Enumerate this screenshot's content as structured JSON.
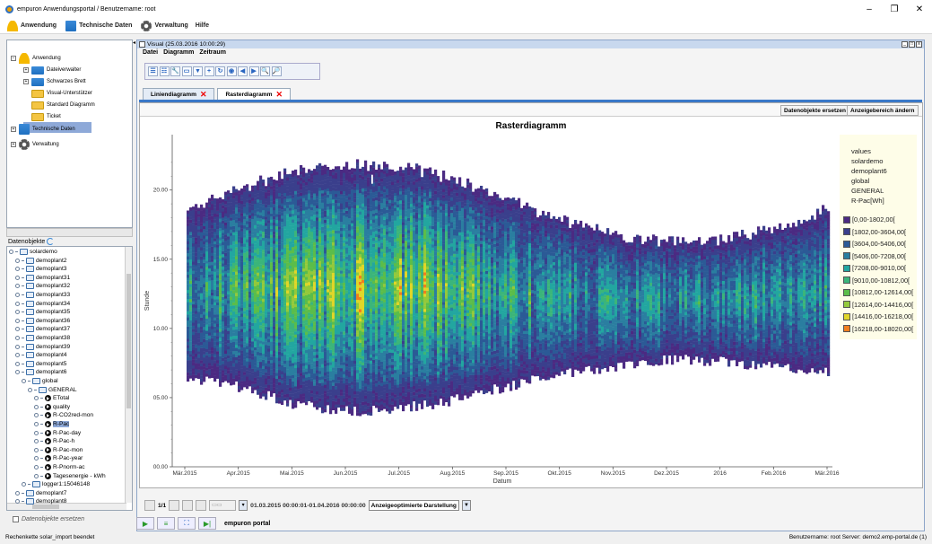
{
  "window": {
    "title": "empuron Anwendungsportal / Benutzername: root",
    "controls": [
      "–",
      "❐",
      "✕"
    ]
  },
  "menubar": {
    "items": [
      {
        "label": "Anwendung",
        "icon": "user-icon"
      },
      {
        "label": "Technische Daten",
        "icon": "folder-icon"
      },
      {
        "label": "Verwaltung",
        "icon": "gear-icon"
      },
      {
        "label": "Hilfe",
        "icon": ""
      }
    ]
  },
  "nav_tree": {
    "items": [
      {
        "label": "Anwendung",
        "level": 0,
        "expander": "−"
      },
      {
        "label": "Dateiverwalter",
        "level": 1,
        "expander": "+"
      },
      {
        "label": "Schwarzes Brett",
        "level": 1,
        "expander": "+"
      },
      {
        "label": "Visual-Unterstützer",
        "level": 1,
        "expander": ""
      },
      {
        "label": "Standard Diagramm",
        "level": 1,
        "expander": "",
        "selected": true
      },
      {
        "label": "Ticket",
        "level": 1,
        "expander": ""
      },
      {
        "label": "Technische Daten",
        "level": 0,
        "expander": "+"
      },
      {
        "label": "Verwaltung",
        "level": 0,
        "expander": "+"
      }
    ]
  },
  "datenobjekte": {
    "title": "Datenobjekte",
    "tree": [
      {
        "label": "solardemo",
        "level": 0,
        "type": "folder"
      },
      {
        "label": "demoplant2",
        "level": 1,
        "type": "folder"
      },
      {
        "label": "demoplant3",
        "level": 1,
        "type": "folder"
      },
      {
        "label": "demoplant31",
        "level": 1,
        "type": "folder"
      },
      {
        "label": "demoplant32",
        "level": 1,
        "type": "folder"
      },
      {
        "label": "demoplant33",
        "level": 1,
        "type": "folder"
      },
      {
        "label": "demoplant34",
        "level": 1,
        "type": "folder"
      },
      {
        "label": "demoplant35",
        "level": 1,
        "type": "folder"
      },
      {
        "label": "demoplant36",
        "level": 1,
        "type": "folder"
      },
      {
        "label": "demoplant37",
        "level": 1,
        "type": "folder"
      },
      {
        "label": "demoplant38",
        "level": 1,
        "type": "folder"
      },
      {
        "label": "demoplant39",
        "level": 1,
        "type": "folder"
      },
      {
        "label": "demoplant4",
        "level": 1,
        "type": "folder"
      },
      {
        "label": "demoplant5",
        "level": 1,
        "type": "folder"
      },
      {
        "label": "demoplant6",
        "level": 1,
        "type": "folder"
      },
      {
        "label": "global",
        "level": 2,
        "type": "folder"
      },
      {
        "label": "GENERAL",
        "level": 3,
        "type": "folder"
      },
      {
        "label": "ETotal",
        "level": 4,
        "type": "value"
      },
      {
        "label": "quality",
        "level": 4,
        "type": "value"
      },
      {
        "label": "R-CO2red-mon",
        "level": 4,
        "type": "value"
      },
      {
        "label": "R-Pac",
        "level": 4,
        "type": "value",
        "selected": true
      },
      {
        "label": "R-Pac-day",
        "level": 4,
        "type": "value"
      },
      {
        "label": "R-Pac-h",
        "level": 4,
        "type": "value"
      },
      {
        "label": "R-Pac-mon",
        "level": 4,
        "type": "value"
      },
      {
        "label": "R-Pac-year",
        "level": 4,
        "type": "value"
      },
      {
        "label": "R-Pnorm-ac",
        "level": 4,
        "type": "value"
      },
      {
        "label": "Tagesenergie - kWh",
        "level": 4,
        "type": "value"
      },
      {
        "label": "logger1:15046148",
        "level": 2,
        "type": "folder"
      },
      {
        "label": "demoplant7",
        "level": 1,
        "type": "folder"
      },
      {
        "label": "demoplant8",
        "level": 1,
        "type": "folder"
      }
    ],
    "replace_checkbox_label": "Datenobjekte ersetzen"
  },
  "status": {
    "left": "Rechenkette solar_import beendet",
    "right": "Benutzername: root  Server: demo2.emp-portal.de  (1)"
  },
  "visual": {
    "title": "Visual (25.03.2016 10:00:29)",
    "menu": [
      "Datei",
      "Diagramm",
      "Zeitraum"
    ],
    "toolbar_icons": [
      "list-icon",
      "list-alt-icon",
      "wrench-icon",
      "folder-icon",
      "filter-icon",
      "plus-icon",
      "refresh-icon",
      "stop-icon",
      "rewind-icon",
      "play-icon",
      "zoom-in-icon",
      "zoom-out-icon"
    ],
    "toolbar_glyphs": [
      "☰",
      "☷",
      "🔧",
      "▭",
      "▼",
      "+",
      "↻",
      "◉",
      "◀",
      "▶",
      "🔍",
      "🔎"
    ],
    "tabs": [
      {
        "label": "Liniendiagramm",
        "active": false
      },
      {
        "label": "Rasterdiagramm",
        "active": true
      }
    ],
    "buttons": {
      "replace": "Datenobjekte ersetzen",
      "range": "Anzeigebereich ändern"
    },
    "navigation": {
      "page": "1/1",
      "range_text": "01.03.2015 00:00:01-01.04.2016 00:00:00",
      "mode": "Anzeigeoptimierte Darstellung"
    },
    "footer_label": "empuron portal"
  },
  "chart_data": {
    "type": "heatmap",
    "title": "Rasterdiagramm",
    "xlabel": "Datum",
    "ylabel": "Stunde",
    "x_ticks": [
      "Mär.2015",
      "Apr.2015",
      "Mai.2015",
      "Jun.2015",
      "Jul.2015",
      "Aug.2015",
      "Sep.2015",
      "Okt.2015",
      "Nov.2015",
      "Dez.2015",
      "2016",
      "Feb.2016",
      "Mär.2016"
    ],
    "y_ticks": [
      "00.00",
      "05.00",
      "10.00",
      "15.00",
      "20.00"
    ],
    "y_range": [
      0,
      24
    ],
    "legend_header": [
      "values",
      "solardemo",
      "demoplant6",
      "global",
      "GENERAL",
      "R-Pac[Wh]"
    ],
    "legend": [
      {
        "label": "[0,00-1802,00[",
        "color": "#4b2a82"
      },
      {
        "label": "[1802,00-3604,00[",
        "color": "#3a3f8c"
      },
      {
        "label": "[3604,00-5406,00[",
        "color": "#2b5a96"
      },
      {
        "label": "[5406,00-7208,00[",
        "color": "#2a7ea0"
      },
      {
        "label": "[7208,00-9010,00[",
        "color": "#22a6a0"
      },
      {
        "label": "[9010,00-10812,00[",
        "color": "#3bb57a"
      },
      {
        "label": "[10812,00-12614,00[",
        "color": "#5bbd4a"
      },
      {
        "label": "[12614,00-14416,00[",
        "color": "#93c93b"
      },
      {
        "label": "[14416,00-16218,00[",
        "color": "#e0d628"
      },
      {
        "label": "[16218,00-18020,00[",
        "color": "#f07e1e"
      }
    ],
    "daylight_hours": {
      "months": [
        "Mär.2015",
        "Apr.2015",
        "Mai.2015",
        "Jun.2015",
        "Jul.2015",
        "Aug.2015",
        "Sep.2015",
        "Okt.2015",
        "Nov.2015",
        "Dez.2015",
        "2016",
        "Feb.2016",
        "Mär.2016"
      ],
      "start": [
        6.5,
        5.8,
        4.5,
        4.0,
        4.2,
        4.8,
        5.8,
        6.8,
        7.2,
        7.8,
        7.6,
        7.2,
        6.8
      ],
      "end": [
        18.5,
        20.0,
        21.3,
        21.7,
        21.6,
        20.7,
        19.2,
        17.8,
        16.6,
        16.2,
        16.3,
        17.2,
        18.5
      ]
    }
  }
}
